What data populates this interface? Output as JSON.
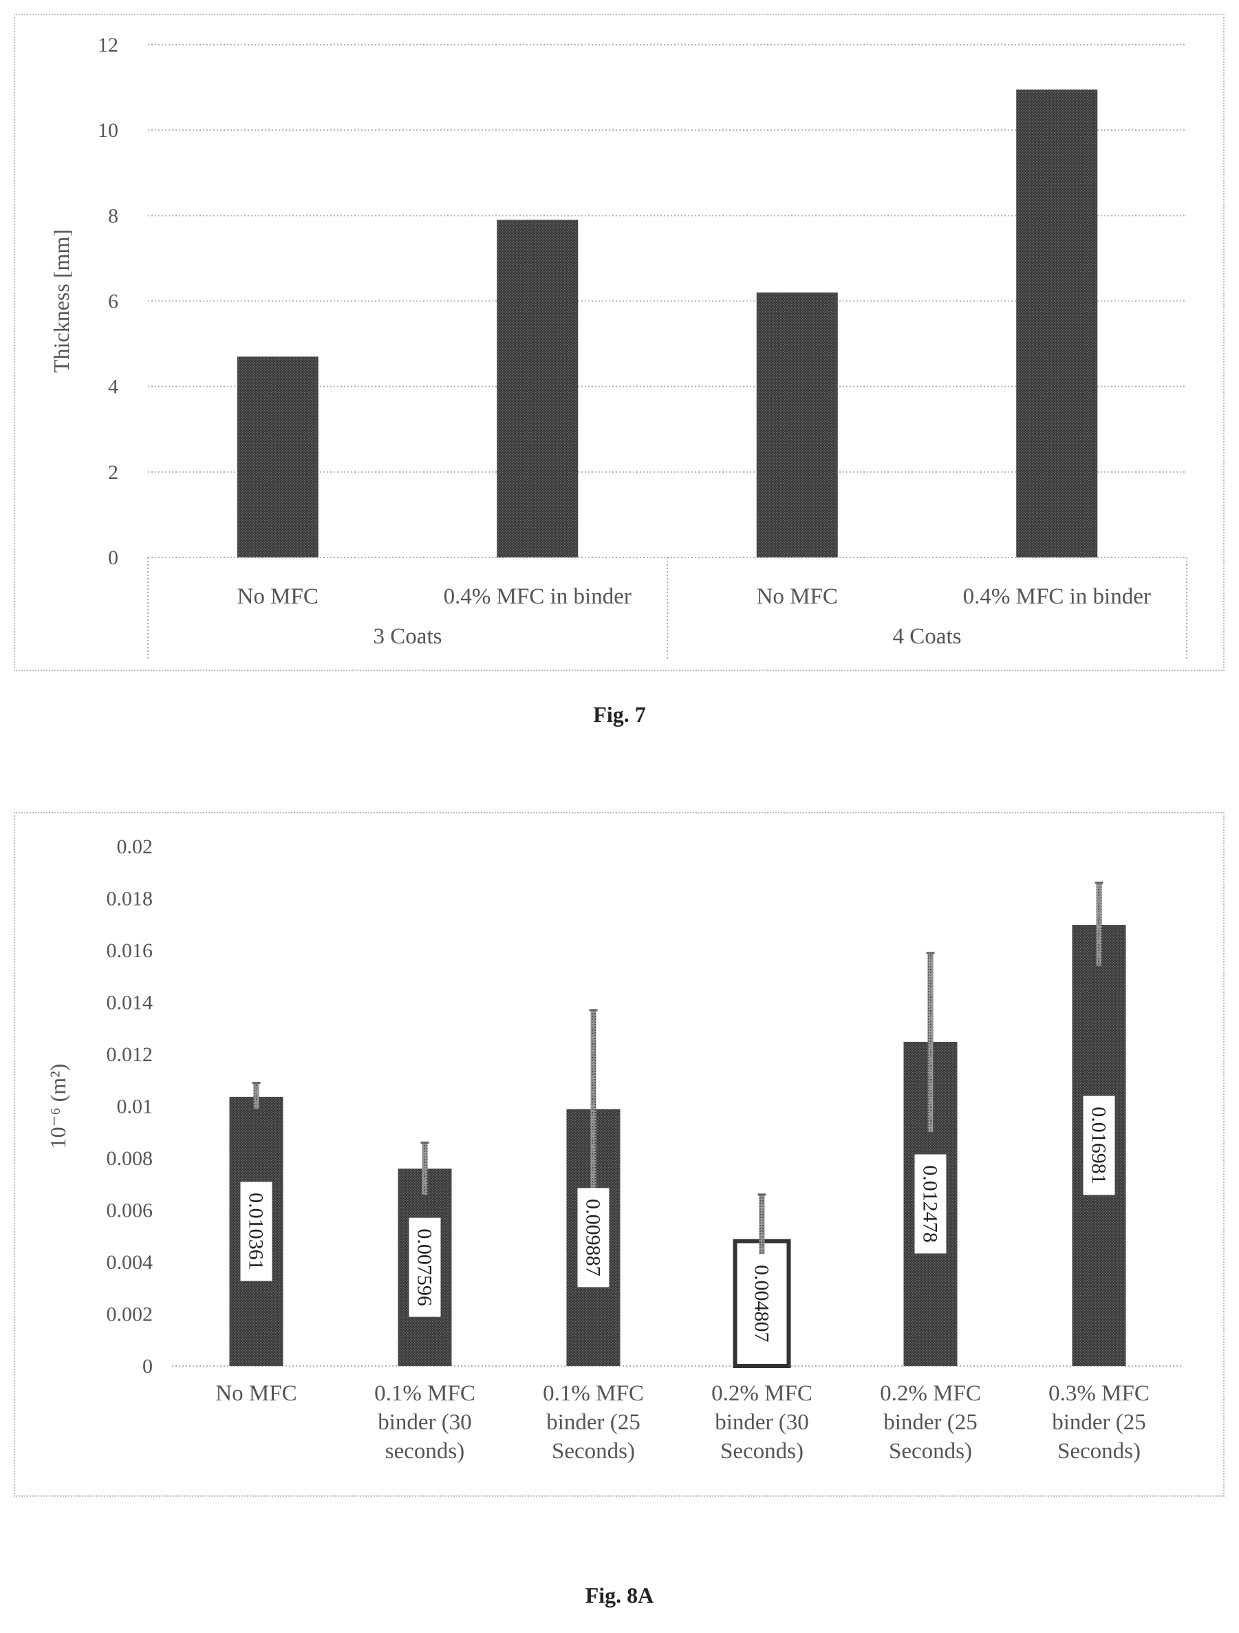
{
  "figures": {
    "fig7_caption": "Fig. 7",
    "fig8a_caption": "Fig. 8A"
  },
  "colors": {
    "bar": "#3a3a3a",
    "bar_pattern": "#555555",
    "grid": "#b0b0b0",
    "errorbar": "#8a8a8a",
    "label_box": "#ffffff"
  },
  "chart_data": [
    {
      "id": "fig7",
      "type": "bar",
      "ylabel": "Thickness [mm]",
      "xlabel": "",
      "ylim": [
        0,
        12
      ],
      "yticks": [
        "0",
        "2",
        "4",
        "6",
        "8",
        "10",
        "12"
      ],
      "grid": true,
      "categories": [
        "No MFC",
        "0.4% MFC in binder",
        "No MFC",
        "0.4% MFC in binder"
      ],
      "groups": [
        "3 Coats",
        "4 Coats"
      ],
      "series": [
        {
          "values": [
            4.7,
            7.9,
            6.2,
            10.95
          ]
        }
      ]
    },
    {
      "id": "fig8a",
      "type": "bar",
      "ylabel": "10⁻⁶ (m²)",
      "xlabel": "",
      "ylim": [
        0,
        0.02
      ],
      "yticks": [
        "0",
        "0.002",
        "0.004",
        "0.006",
        "0.008",
        "0.01",
        "0.012",
        "0.014",
        "0.016",
        "0.018",
        "0.02"
      ],
      "grid": true,
      "categories": [
        [
          "No MFC"
        ],
        [
          "0.1% MFC",
          "binder (30",
          "seconds)"
        ],
        [
          "0.1% MFC",
          "binder (25",
          "Seconds)"
        ],
        [
          "0.2% MFC",
          "binder (30",
          "Seconds)"
        ],
        [
          "0.2% MFC",
          "binder (25",
          "Seconds)"
        ],
        [
          "0.3% MFC",
          "binder (25",
          "Seconds)"
        ]
      ],
      "series": [
        {
          "values": [
            0.010361,
            0.007596,
            0.009887,
            0.004807,
            0.012478,
            0.016981
          ],
          "data_labels": [
            "0.010361",
            "0.007596",
            "0.009887",
            "0.004807",
            "0.012478",
            "0.016981"
          ],
          "error_upper": [
            0.0109,
            0.0086,
            0.0137,
            0.0066,
            0.0159,
            0.0186
          ],
          "error_lower": [
            0.0099,
            0.0066,
            0.0062,
            0.003,
            0.009,
            0.0154
          ]
        }
      ]
    }
  ]
}
